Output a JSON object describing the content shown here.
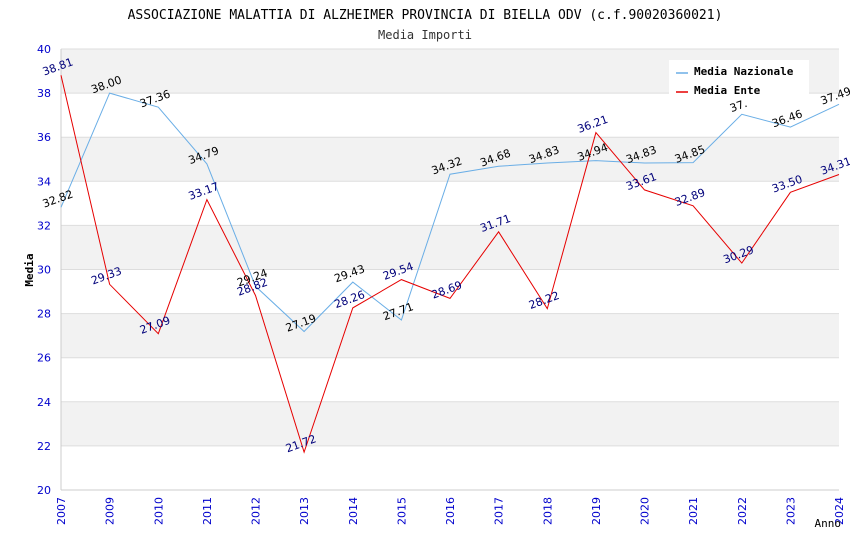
{
  "chart_data": {
    "type": "line",
    "title": "ASSOCIAZIONE MALATTIA DI ALZHEIMER PROVINCIA DI BIELLA ODV (c.f.90020360021)",
    "subtitle": "Media Importi",
    "xlabel": "Anno",
    "ylabel": "Media",
    "ylim": [
      20,
      40
    ],
    "yticks": [
      "20",
      "22",
      "24",
      "26",
      "28",
      "30",
      "32",
      "34",
      "36",
      "38",
      "40"
    ],
    "categories": [
      "2007",
      "2009",
      "2010",
      "2011",
      "2012",
      "2013",
      "2014",
      "2015",
      "2016",
      "2017",
      "2018",
      "2019",
      "2020",
      "2021",
      "2022",
      "2023",
      "2024"
    ],
    "legend_position": "top-right",
    "grid": true,
    "series": [
      {
        "name": "Media Nazionale",
        "color": "#6aaee6",
        "label_color": "#000000",
        "values": [
          32.82,
          38.0,
          37.36,
          34.79,
          29.24,
          27.19,
          29.43,
          27.71,
          34.32,
          34.68,
          34.83,
          34.94,
          34.83,
          34.85,
          37.04,
          36.46,
          37.49
        ],
        "labels": [
          "32.82",
          "38.00",
          "37.36",
          "34.79",
          "29.24",
          "27.19",
          "29.43",
          "27.71",
          "34.32",
          "34.68",
          "34.83",
          "34.94",
          "34.83",
          "34.85",
          "37.",
          "36.46",
          "37.49"
        ]
      },
      {
        "name": "Media Ente",
        "color": "#e60000",
        "label_color": "#00007a",
        "values": [
          38.81,
          29.33,
          27.09,
          33.17,
          28.82,
          21.72,
          28.26,
          29.54,
          28.69,
          31.71,
          28.22,
          36.21,
          33.61,
          32.89,
          30.29,
          33.5,
          34.31
        ],
        "labels": [
          "38.81",
          "29.33",
          "27.09",
          "33.17",
          "28.82",
          "21.72",
          "28.26",
          "29.54",
          "28.69",
          "31.71",
          "28.22",
          "36.21",
          "33.61",
          "32.89",
          "30.29",
          "33.50",
          "34.31"
        ]
      }
    ]
  }
}
